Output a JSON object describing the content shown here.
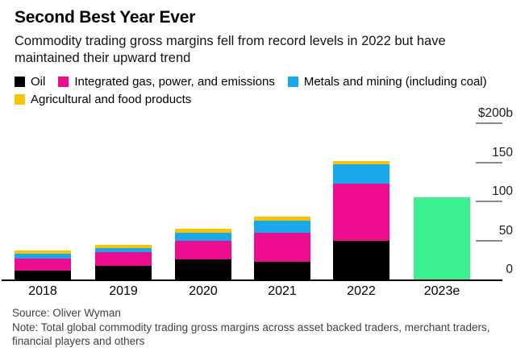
{
  "header": {
    "title": "Second Best Year Ever",
    "subtitle_lines": [
      "Commodity trading gross margins fell from record levels in 2022 but have",
      "maintained their upward trend"
    ]
  },
  "legend": {
    "items": [
      {
        "label": "Oil",
        "color": "#000000"
      },
      {
        "label": "Integrated gas, power, and emissions",
        "color": "#EC0C8D"
      },
      {
        "label": "Metals and mining (including coal)",
        "color": "#18A9EC"
      },
      {
        "label": "Agricultural and food products",
        "color": "#F9C306"
      }
    ]
  },
  "chart_data": {
    "type": "bar",
    "stacked": true,
    "title": "Second Best Year Ever",
    "unit": "billions of US dollars",
    "categories": [
      "2018",
      "2019",
      "2020",
      "2021",
      "2022",
      "2023e"
    ],
    "series": [
      {
        "name": "Oil",
        "color": "#000000",
        "values": [
          11,
          17,
          26,
          23,
          49,
          0
        ]
      },
      {
        "name": "Integrated gas, power, and emissions",
        "color": "#EC0C8D",
        "values": [
          16,
          18,
          23,
          37,
          74,
          0
        ]
      },
      {
        "name": "Metals and mining (including coal)",
        "color": "#18A9EC",
        "values": [
          6,
          5,
          11,
          15,
          24,
          0
        ]
      },
      {
        "name": "Agricultural and food products",
        "color": "#F9C306",
        "values": [
          4,
          4,
          5,
          5,
          5,
          0
        ]
      }
    ],
    "estimate_bar": {
      "category": "2023e",
      "total": 105,
      "color": "#3DF08F"
    },
    "totals": [
      37,
      44,
      65,
      80,
      152,
      105
    ],
    "y_axis": {
      "ticks": [
        {
          "label": "$200b",
          "value": 200
        },
        {
          "label": "150",
          "value": 150
        },
        {
          "label": "100",
          "value": 100
        },
        {
          "label": "50",
          "value": 50
        },
        {
          "label": "0",
          "value": 0
        }
      ],
      "min": 0,
      "max": 200,
      "side": "right"
    },
    "grid": false,
    "legend_position": "top"
  },
  "footer": {
    "source": "Source: Oliver Wyman",
    "note_lines": [
      "Note: Total global commodity trading gross margins across asset backed traders, merchant traders,",
      "financial players and others"
    ]
  }
}
